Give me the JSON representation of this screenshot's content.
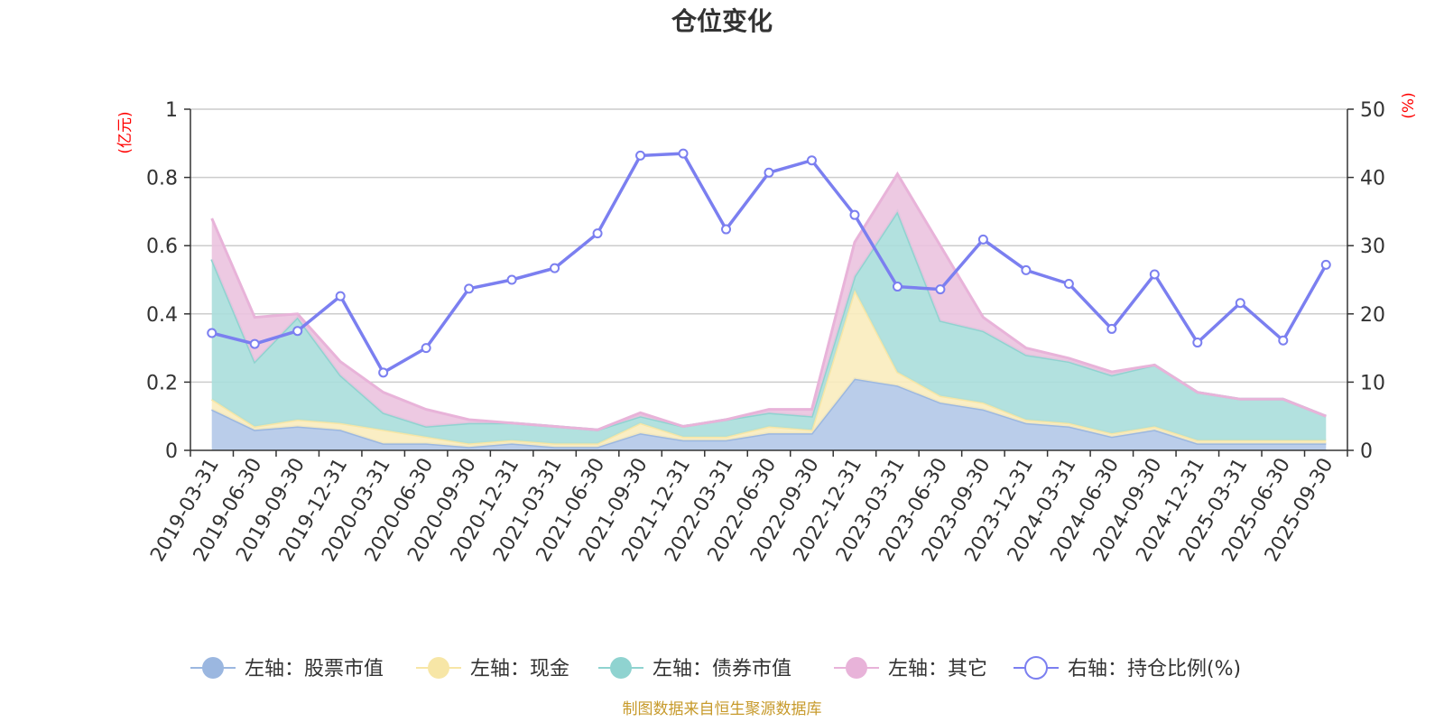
{
  "chart_data": {
    "type": "area",
    "title": "仓位变化",
    "left_axis_unit": "(亿元)",
    "right_axis_unit": "(%)",
    "left_ylim": [
      0,
      1
    ],
    "left_ticks": [
      "0",
      "0.2",
      "0.4",
      "0.6",
      "0.8",
      "1"
    ],
    "right_ylim": [
      0,
      50
    ],
    "right_ticks": [
      "0",
      "10",
      "20",
      "30",
      "40",
      "50"
    ],
    "categories": [
      "2019-03-31",
      "2019-06-30",
      "2019-09-30",
      "2019-12-31",
      "2020-03-31",
      "2020-06-30",
      "2020-09-30",
      "2020-12-31",
      "2021-03-31",
      "2021-06-30",
      "2021-09-30",
      "2021-12-31",
      "2022-03-31",
      "2022-06-30",
      "2022-09-30",
      "2022-12-31",
      "2023-03-31",
      "2023-06-30",
      "2023-09-30",
      "2023-12-31",
      "2024-03-31",
      "2024-06-30",
      "2024-09-30",
      "2024-12-31",
      "2025-03-31",
      "2025-06-30",
      "2025-09-30"
    ],
    "series": [
      {
        "name": "左轴：股票市值",
        "axis": "left",
        "stacked": true,
        "color": "#9bb7e0",
        "fill": "#b3c8e8",
        "values": [
          0.12,
          0.06,
          0.07,
          0.06,
          0.02,
          0.02,
          0.01,
          0.02,
          0.01,
          0.01,
          0.05,
          0.03,
          0.03,
          0.05,
          0.05,
          0.21,
          0.19,
          0.14,
          0.12,
          0.08,
          0.07,
          0.04,
          0.06,
          0.02,
          0.02,
          0.02,
          0.02
        ]
      },
      {
        "name": "左轴：现金",
        "axis": "left",
        "stacked": true,
        "color": "#f7e6a6",
        "fill": "#f9ecbe",
        "values": [
          0.03,
          0.01,
          0.02,
          0.02,
          0.04,
          0.02,
          0.01,
          0.01,
          0.01,
          0.01,
          0.03,
          0.01,
          0.01,
          0.02,
          0.01,
          0.26,
          0.04,
          0.02,
          0.02,
          0.01,
          0.01,
          0.01,
          0.01,
          0.01,
          0.01,
          0.01,
          0.01
        ]
      },
      {
        "name": "左轴：债券市值",
        "axis": "left",
        "stacked": true,
        "color": "#8fd3d0",
        "fill": "#aadedc",
        "values": [
          0.41,
          0.19,
          0.3,
          0.14,
          0.05,
          0.03,
          0.06,
          0.05,
          0.05,
          0.04,
          0.02,
          0.03,
          0.05,
          0.04,
          0.04,
          0.04,
          0.47,
          0.22,
          0.21,
          0.19,
          0.18,
          0.17,
          0.18,
          0.14,
          0.12,
          0.12,
          0.07
        ]
      },
      {
        "name": "左轴：其它",
        "axis": "left",
        "stacked": true,
        "color": "#e8b3d9",
        "fill": "#ebc3df",
        "values": [
          0.12,
          0.13,
          0.01,
          0.04,
          0.06,
          0.05,
          0.01,
          0.0,
          0.0,
          0.0,
          0.01,
          0.0,
          0.0,
          0.01,
          0.02,
          0.1,
          0.11,
          0.22,
          0.04,
          0.02,
          0.01,
          0.01,
          0.0,
          0.0,
          0.0,
          0.0,
          0.0
        ]
      },
      {
        "name": "右轴：持仓比例(%)",
        "axis": "right",
        "stacked": false,
        "color": "#7b7ff0",
        "fill": "none",
        "values": [
          17.2,
          15.6,
          17.5,
          22.6,
          11.4,
          15.0,
          23.7,
          25.0,
          26.7,
          31.8,
          43.2,
          43.5,
          32.4,
          40.7,
          42.5,
          34.5,
          24.0,
          23.6,
          30.9,
          26.4,
          24.4,
          17.8,
          25.8,
          15.8,
          21.6,
          16.1,
          27.2
        ]
      }
    ],
    "legend_position": "bottom",
    "grid": true
  },
  "footer": {
    "source": "制图数据来自恒生聚源数据库"
  }
}
